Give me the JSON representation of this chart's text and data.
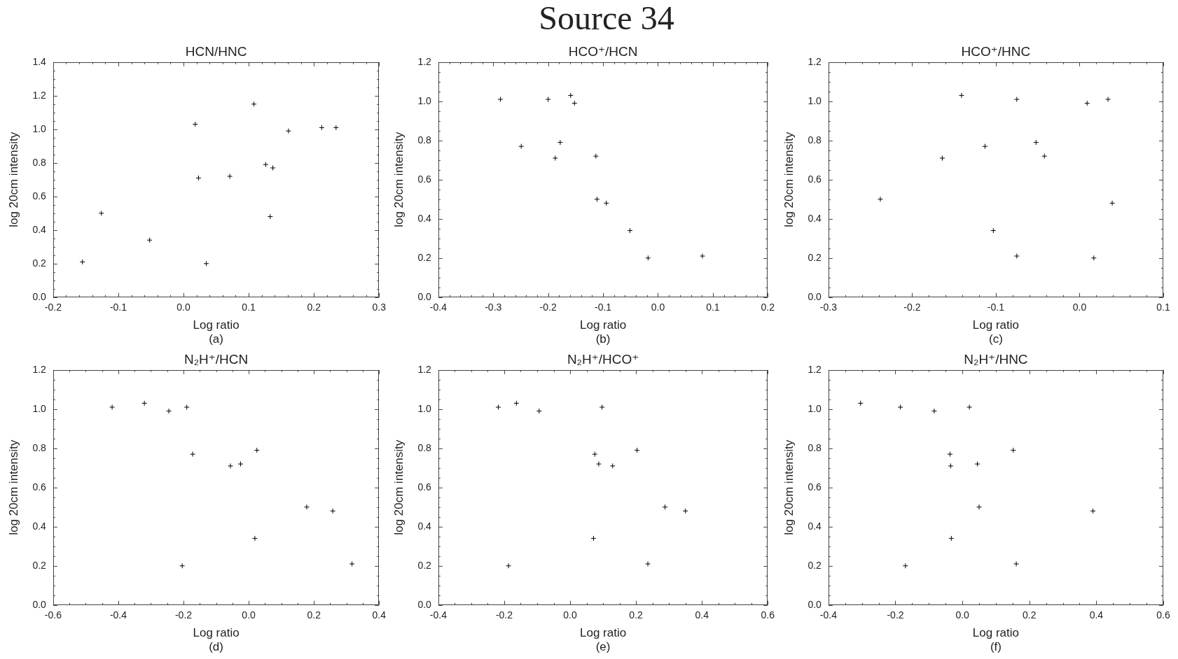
{
  "chart_data": [
    {
      "type": "other",
      "title": "Source 34"
    },
    {
      "type": "scatter",
      "title": "HCN/HNC",
      "xlabel": "Log ratio",
      "ylabel": "log 20cm intensity",
      "annotations": [
        "(a)"
      ],
      "marker": "cross",
      "x": [
        -0.155,
        -0.126,
        -0.052,
        0.018,
        0.023,
        0.035,
        0.071,
        0.108,
        0.126,
        0.133,
        0.137,
        0.161,
        0.212,
        0.234
      ],
      "series": [
        {
          "color": "#000000",
          "values": [
            0.21,
            0.5,
            0.34,
            1.03,
            0.71,
            0.2,
            0.72,
            1.15,
            0.79,
            0.48,
            0.77,
            0.99,
            1.01,
            1.01
          ]
        }
      ],
      "xlim": [
        -0.2,
        0.3
      ],
      "ylim": [
        0,
        1.4
      ],
      "xticks": [
        -0.2,
        {
          "value": -0.18,
          "label": null
        },
        {
          "value": -0.16,
          "label": null
        },
        {
          "value": -0.14,
          "label": null
        },
        {
          "value": -0.12,
          "label": null
        },
        -0.1,
        {
          "value": -0.08,
          "label": null
        },
        {
          "value": -0.06,
          "label": null
        },
        {
          "value": -0.04,
          "label": null
        },
        {
          "value": -0.02,
          "label": null
        },
        {
          "value": 0,
          "label": "0.0"
        },
        {
          "value": 0.02,
          "label": null
        },
        {
          "value": 0.04,
          "label": null
        },
        {
          "value": 0.06,
          "label": null
        },
        {
          "value": 0.08,
          "label": null
        },
        0.1,
        {
          "value": 0.12,
          "label": null
        },
        {
          "value": 0.14,
          "label": null
        },
        {
          "value": 0.16,
          "label": null
        },
        {
          "value": 0.18,
          "label": null
        },
        0.2,
        {
          "value": 0.22,
          "label": null
        },
        {
          "value": 0.24,
          "label": null
        },
        {
          "value": 0.26,
          "label": null
        },
        {
          "value": 0.28,
          "label": null
        },
        0.3
      ],
      "yticks": [
        {
          "value": 0,
          "label": "0.0"
        },
        {
          "value": 0.05,
          "label": null
        },
        {
          "value": 0.1,
          "label": null
        },
        {
          "value": 0.15,
          "label": null
        },
        0.2,
        {
          "value": 0.25,
          "label": null
        },
        {
          "value": 0.3,
          "label": null
        },
        {
          "value": 0.35,
          "label": null
        },
        0.4,
        {
          "value": 0.45,
          "label": null
        },
        {
          "value": 0.5,
          "label": null
        },
        {
          "value": 0.55,
          "label": null
        },
        0.6,
        {
          "value": 0.65,
          "label": null
        },
        {
          "value": 0.7,
          "label": null
        },
        {
          "value": 0.75,
          "label": null
        },
        0.8,
        {
          "value": 0.85,
          "label": null
        },
        {
          "value": 0.9,
          "label": null
        },
        {
          "value": 0.95,
          "label": null
        },
        {
          "value": 1,
          "label": "1.0"
        },
        {
          "value": 1.05,
          "label": null
        },
        {
          "value": 1.1,
          "label": null
        },
        {
          "value": 1.15,
          "label": null
        },
        1.2,
        {
          "value": 1.25,
          "label": null
        },
        {
          "value": 1.3,
          "label": null
        },
        {
          "value": 1.35,
          "label": null
        },
        1.4
      ]
    },
    {
      "type": "scatter",
      "title": "HCO⁺/HCN",
      "xlabel": "Log ratio",
      "ylabel": "log 20cm intensity",
      "annotations": [
        "(b)"
      ],
      "marker": "cross",
      "x": [
        -0.287,
        -0.249,
        -0.2,
        -0.187,
        -0.178,
        -0.159,
        -0.152,
        -0.113,
        -0.111,
        -0.094,
        -0.051,
        -0.018,
        0.081
      ],
      "series": [
        {
          "color": "#000000",
          "values": [
            1.01,
            0.77,
            1.01,
            0.71,
            0.79,
            1.03,
            0.99,
            0.72,
            0.5,
            0.48,
            0.34,
            0.2,
            0.21
          ]
        }
      ],
      "xlim": [
        -0.4,
        0.2
      ],
      "ylim": [
        0,
        1.2
      ],
      "xticks": [
        -0.4,
        {
          "value": -0.38,
          "label": null
        },
        {
          "value": -0.36,
          "label": null
        },
        {
          "value": -0.34,
          "label": null
        },
        {
          "value": -0.32,
          "label": null
        },
        -0.3,
        {
          "value": -0.28,
          "label": null
        },
        {
          "value": -0.26,
          "label": null
        },
        {
          "value": -0.24,
          "label": null
        },
        {
          "value": -0.22,
          "label": null
        },
        -0.2,
        {
          "value": -0.18,
          "label": null
        },
        {
          "value": -0.16,
          "label": null
        },
        {
          "value": -0.14,
          "label": null
        },
        {
          "value": -0.12,
          "label": null
        },
        -0.1,
        {
          "value": -0.08,
          "label": null
        },
        {
          "value": -0.06,
          "label": null
        },
        {
          "value": -0.04,
          "label": null
        },
        {
          "value": -0.02,
          "label": null
        },
        {
          "value": 0,
          "label": "0.0"
        },
        {
          "value": 0.02,
          "label": null
        },
        {
          "value": 0.04,
          "label": null
        },
        {
          "value": 0.06,
          "label": null
        },
        {
          "value": 0.08,
          "label": null
        },
        0.1,
        {
          "value": 0.12,
          "label": null
        },
        {
          "value": 0.14,
          "label": null
        },
        {
          "value": 0.16,
          "label": null
        },
        {
          "value": 0.18,
          "label": null
        },
        0.2
      ],
      "yticks": [
        {
          "value": 0,
          "label": "0.0"
        },
        {
          "value": 0.05,
          "label": null
        },
        {
          "value": 0.1,
          "label": null
        },
        {
          "value": 0.15,
          "label": null
        },
        0.2,
        {
          "value": 0.25,
          "label": null
        },
        {
          "value": 0.3,
          "label": null
        },
        {
          "value": 0.35,
          "label": null
        },
        0.4,
        {
          "value": 0.45,
          "label": null
        },
        {
          "value": 0.5,
          "label": null
        },
        {
          "value": 0.55,
          "label": null
        },
        0.6,
        {
          "value": 0.65,
          "label": null
        },
        {
          "value": 0.7,
          "label": null
        },
        {
          "value": 0.75,
          "label": null
        },
        0.8,
        {
          "value": 0.85,
          "label": null
        },
        {
          "value": 0.9,
          "label": null
        },
        {
          "value": 0.95,
          "label": null
        },
        {
          "value": 1,
          "label": "1.0"
        },
        {
          "value": 1.05,
          "label": null
        },
        {
          "value": 1.1,
          "label": null
        },
        {
          "value": 1.15,
          "label": null
        },
        1.2
      ]
    },
    {
      "type": "scatter",
      "title": "HCO⁺/HNC",
      "xlabel": "Log ratio",
      "ylabel": "log 20cm intensity",
      "annotations": [
        "(c)"
      ],
      "marker": "cross",
      "x": [
        -0.238,
        -0.164,
        -0.141,
        -0.113,
        -0.103,
        -0.075,
        -0.075,
        -0.052,
        -0.042,
        0.009,
        0.017,
        0.034,
        0.039
      ],
      "series": [
        {
          "color": "#000000",
          "values": [
            0.5,
            0.71,
            1.03,
            0.77,
            0.34,
            1.01,
            0.21,
            0.79,
            0.72,
            0.99,
            0.2,
            1.01,
            0.48
          ]
        }
      ],
      "xlim": [
        -0.3,
        0.1
      ],
      "ylim": [
        0,
        1.2
      ],
      "xticks": [
        -0.3,
        {
          "value": -0.28,
          "label": null
        },
        {
          "value": -0.26,
          "label": null
        },
        {
          "value": -0.24,
          "label": null
        },
        {
          "value": -0.22,
          "label": null
        },
        -0.2,
        {
          "value": -0.18,
          "label": null
        },
        {
          "value": -0.16,
          "label": null
        },
        {
          "value": -0.14,
          "label": null
        },
        {
          "value": -0.12,
          "label": null
        },
        -0.1,
        {
          "value": -0.08,
          "label": null
        },
        {
          "value": -0.06,
          "label": null
        },
        {
          "value": -0.04,
          "label": null
        },
        {
          "value": -0.02,
          "label": null
        },
        {
          "value": 0,
          "label": "0.0"
        },
        {
          "value": 0.02,
          "label": null
        },
        {
          "value": 0.04,
          "label": null
        },
        {
          "value": 0.06,
          "label": null
        },
        {
          "value": 0.08,
          "label": null
        },
        0.1
      ],
      "yticks": [
        {
          "value": 0,
          "label": "0.0"
        },
        {
          "value": 0.05,
          "label": null
        },
        {
          "value": 0.1,
          "label": null
        },
        {
          "value": 0.15,
          "label": null
        },
        0.2,
        {
          "value": 0.25,
          "label": null
        },
        {
          "value": 0.3,
          "label": null
        },
        {
          "value": 0.35,
          "label": null
        },
        0.4,
        {
          "value": 0.45,
          "label": null
        },
        {
          "value": 0.5,
          "label": null
        },
        {
          "value": 0.55,
          "label": null
        },
        0.6,
        {
          "value": 0.65,
          "label": null
        },
        {
          "value": 0.7,
          "label": null
        },
        {
          "value": 0.75,
          "label": null
        },
        0.8,
        {
          "value": 0.85,
          "label": null
        },
        {
          "value": 0.9,
          "label": null
        },
        {
          "value": 0.95,
          "label": null
        },
        {
          "value": 1,
          "label": "1.0"
        },
        {
          "value": 1.05,
          "label": null
        },
        {
          "value": 1.1,
          "label": null
        },
        {
          "value": 1.15,
          "label": null
        },
        1.2
      ]
    },
    {
      "type": "scatter",
      "title": "N₂H⁺/HCN",
      "xlabel": "Log ratio",
      "ylabel": "log 20cm intensity",
      "annotations": [
        "(d)"
      ],
      "marker": "cross",
      "x": [
        -0.419,
        -0.32,
        -0.245,
        -0.204,
        -0.19,
        -0.172,
        -0.056,
        -0.025,
        0.019,
        0.025,
        0.178,
        0.258,
        0.317
      ],
      "series": [
        {
          "color": "#000000",
          "values": [
            1.01,
            1.03,
            0.99,
            0.2,
            1.01,
            0.77,
            0.71,
            0.72,
            0.34,
            0.79,
            0.5,
            0.48,
            0.21
          ]
        }
      ],
      "xlim": [
        -0.6,
        0.4
      ],
      "ylim": [
        0,
        1.2
      ],
      "xticks": [
        -0.6,
        {
          "value": -0.55,
          "label": null
        },
        {
          "value": -0.5,
          "label": null
        },
        {
          "value": -0.45,
          "label": null
        },
        -0.4,
        {
          "value": -0.35,
          "label": null
        },
        {
          "value": -0.3,
          "label": null
        },
        {
          "value": -0.25,
          "label": null
        },
        -0.2,
        {
          "value": -0.15,
          "label": null
        },
        {
          "value": -0.1,
          "label": null
        },
        {
          "value": -0.05,
          "label": null
        },
        {
          "value": 0,
          "label": "0.0"
        },
        {
          "value": 0.05,
          "label": null
        },
        {
          "value": 0.1,
          "label": null
        },
        {
          "value": 0.15,
          "label": null
        },
        0.2,
        {
          "value": 0.25,
          "label": null
        },
        {
          "value": 0.3,
          "label": null
        },
        {
          "value": 0.35,
          "label": null
        },
        0.4
      ],
      "yticks": [
        {
          "value": 0,
          "label": "0.0"
        },
        {
          "value": 0.05,
          "label": null
        },
        {
          "value": 0.1,
          "label": null
        },
        {
          "value": 0.15,
          "label": null
        },
        0.2,
        {
          "value": 0.25,
          "label": null
        },
        {
          "value": 0.3,
          "label": null
        },
        {
          "value": 0.35,
          "label": null
        },
        0.4,
        {
          "value": 0.45,
          "label": null
        },
        {
          "value": 0.5,
          "label": null
        },
        {
          "value": 0.55,
          "label": null
        },
        0.6,
        {
          "value": 0.65,
          "label": null
        },
        {
          "value": 0.7,
          "label": null
        },
        {
          "value": 0.75,
          "label": null
        },
        0.8,
        {
          "value": 0.85,
          "label": null
        },
        {
          "value": 0.9,
          "label": null
        },
        {
          "value": 0.95,
          "label": null
        },
        {
          "value": 1,
          "label": "1.0"
        },
        {
          "value": 1.05,
          "label": null
        },
        {
          "value": 1.1,
          "label": null
        },
        {
          "value": 1.15,
          "label": null
        },
        1.2
      ]
    },
    {
      "type": "scatter",
      "title": "N₂H⁺/HCO⁺",
      "xlabel": "Log ratio",
      "ylabel": "log 20cm intensity",
      "annotations": [
        "(e)"
      ],
      "marker": "cross",
      "x": [
        -0.218,
        -0.187,
        -0.163,
        -0.094,
        0.071,
        0.075,
        0.087,
        0.097,
        0.129,
        0.203,
        0.236,
        0.288,
        0.35
      ],
      "series": [
        {
          "color": "#000000",
          "values": [
            1.01,
            0.2,
            1.03,
            0.99,
            0.34,
            0.77,
            0.72,
            1.01,
            0.71,
            0.79,
            0.21,
            0.5,
            0.48
          ]
        }
      ],
      "xlim": [
        -0.4,
        0.6
      ],
      "ylim": [
        0,
        1.2
      ],
      "xticks": [
        -0.4,
        {
          "value": -0.35,
          "label": null
        },
        {
          "value": -0.3,
          "label": null
        },
        {
          "value": -0.25,
          "label": null
        },
        -0.2,
        {
          "value": -0.15,
          "label": null
        },
        {
          "value": -0.1,
          "label": null
        },
        {
          "value": -0.05,
          "label": null
        },
        {
          "value": 0,
          "label": "0.0"
        },
        {
          "value": 0.05,
          "label": null
        },
        {
          "value": 0.1,
          "label": null
        },
        {
          "value": 0.15,
          "label": null
        },
        0.2,
        {
          "value": 0.25,
          "label": null
        },
        {
          "value": 0.3,
          "label": null
        },
        {
          "value": 0.35,
          "label": null
        },
        0.4,
        {
          "value": 0.45,
          "label": null
        },
        {
          "value": 0.5,
          "label": null
        },
        {
          "value": 0.55,
          "label": null
        },
        0.6
      ],
      "yticks": [
        {
          "value": 0,
          "label": "0.0"
        },
        {
          "value": 0.05,
          "label": null
        },
        {
          "value": 0.1,
          "label": null
        },
        {
          "value": 0.15,
          "label": null
        },
        0.2,
        {
          "value": 0.25,
          "label": null
        },
        {
          "value": 0.3,
          "label": null
        },
        {
          "value": 0.35,
          "label": null
        },
        0.4,
        {
          "value": 0.45,
          "label": null
        },
        {
          "value": 0.5,
          "label": null
        },
        {
          "value": 0.55,
          "label": null
        },
        0.6,
        {
          "value": 0.65,
          "label": null
        },
        {
          "value": 0.7,
          "label": null
        },
        {
          "value": 0.75,
          "label": null
        },
        0.8,
        {
          "value": 0.85,
          "label": null
        },
        {
          "value": 0.9,
          "label": null
        },
        {
          "value": 0.95,
          "label": null
        },
        {
          "value": 1,
          "label": "1.0"
        },
        {
          "value": 1.05,
          "label": null
        },
        {
          "value": 1.1,
          "label": null
        },
        {
          "value": 1.15,
          "label": null
        },
        1.2
      ]
    },
    {
      "type": "scatter",
      "title": "N₂H⁺/HNC",
      "xlabel": "Log ratio",
      "ylabel": "log 20cm intensity",
      "annotations": [
        "(f)"
      ],
      "marker": "cross",
      "x": [
        -0.304,
        -0.185,
        -0.17,
        -0.084,
        -0.037,
        -0.035,
        -0.033,
        0.021,
        0.045,
        0.05,
        0.152,
        0.161,
        0.39
      ],
      "series": [
        {
          "color": "#000000",
          "values": [
            1.03,
            1.01,
            0.2,
            0.99,
            0.77,
            0.71,
            0.34,
            1.01,
            0.72,
            0.5,
            0.79,
            0.21,
            0.48
          ]
        }
      ],
      "xlim": [
        -0.4,
        0.6
      ],
      "ylim": [
        0,
        1.2
      ],
      "xticks": [
        -0.4,
        {
          "value": -0.35,
          "label": null
        },
        {
          "value": -0.3,
          "label": null
        },
        {
          "value": -0.25,
          "label": null
        },
        -0.2,
        {
          "value": -0.15,
          "label": null
        },
        {
          "value": -0.1,
          "label": null
        },
        {
          "value": -0.05,
          "label": null
        },
        {
          "value": 0,
          "label": "0.0"
        },
        {
          "value": 0.05,
          "label": null
        },
        {
          "value": 0.1,
          "label": null
        },
        {
          "value": 0.15,
          "label": null
        },
        0.2,
        {
          "value": 0.25,
          "label": null
        },
        {
          "value": 0.3,
          "label": null
        },
        {
          "value": 0.35,
          "label": null
        },
        0.4,
        {
          "value": 0.45,
          "label": null
        },
        {
          "value": 0.5,
          "label": null
        },
        {
          "value": 0.55,
          "label": null
        },
        0.6
      ],
      "yticks": [
        {
          "value": 0,
          "label": "0.0"
        },
        {
          "value": 0.05,
          "label": null
        },
        {
          "value": 0.1,
          "label": null
        },
        {
          "value": 0.15,
          "label": null
        },
        0.2,
        {
          "value": 0.25,
          "label": null
        },
        {
          "value": 0.3,
          "label": null
        },
        {
          "value": 0.35,
          "label": null
        },
        0.4,
        {
          "value": 0.45,
          "label": null
        },
        {
          "value": 0.5,
          "label": null
        },
        {
          "value": 0.55,
          "label": null
        },
        0.6,
        {
          "value": 0.65,
          "label": null
        },
        {
          "value": 0.7,
          "label": null
        },
        {
          "value": 0.75,
          "label": null
        },
        0.8,
        {
          "value": 0.85,
          "label": null
        },
        {
          "value": 0.9,
          "label": null
        },
        {
          "value": 0.95,
          "label": null
        },
        {
          "value": 1,
          "label": "1.0"
        },
        {
          "value": 1.05,
          "label": null
        },
        {
          "value": 1.1,
          "label": null
        },
        {
          "value": 1.15,
          "label": null
        },
        1.2
      ]
    }
  ]
}
